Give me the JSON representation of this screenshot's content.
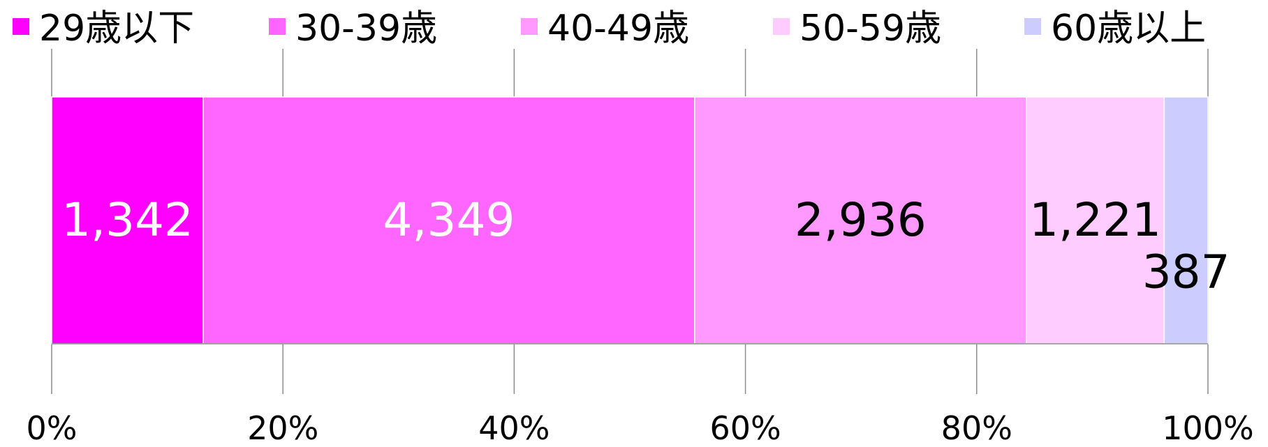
{
  "chart_data": {
    "type": "bar",
    "orientation": "horizontal",
    "stacking": "percent",
    "categories": [
      ""
    ],
    "series": [
      {
        "name": "29歳以下",
        "values": [
          1342
        ],
        "label": "1,342",
        "color": "#ff00ff",
        "label_color": "#ffffff"
      },
      {
        "name": "30-39歳",
        "values": [
          4349
        ],
        "label": "4,349",
        "color": "#ff66ff",
        "label_color": "#ffffff"
      },
      {
        "name": "40-49歳",
        "values": [
          2936
        ],
        "label": "2,936",
        "color": "#ff99ff",
        "label_color": "#000000"
      },
      {
        "name": "50-59歳",
        "values": [
          1221
        ],
        "label": "1,221",
        "color": "#ffccff",
        "label_color": "#000000"
      },
      {
        "name": "60歳以上",
        "values": [
          387
        ],
        "label": "387",
        "color": "#ccccff",
        "label_color": "#000000"
      }
    ],
    "xlim": [
      0,
      100
    ],
    "x_ticks": [
      0,
      20,
      40,
      60,
      80,
      100
    ],
    "x_tick_labels": [
      "0%",
      "20%",
      "40%",
      "60%",
      "80%",
      "100%"
    ],
    "grid": true,
    "legend": "top"
  }
}
